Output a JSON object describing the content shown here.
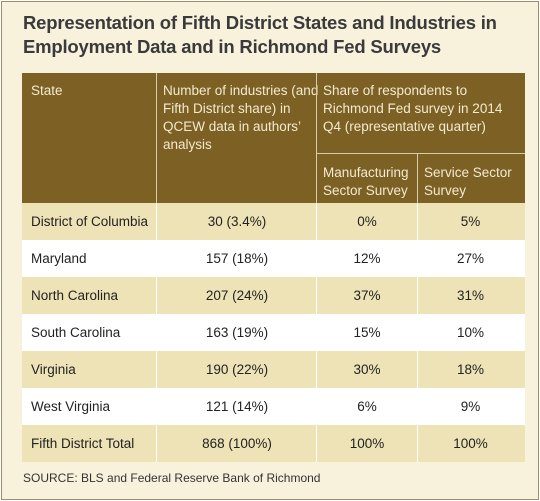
{
  "title": "Representation of Fifth District States and Industries in Employment Data and in Richmond Fed Surveys",
  "headers": {
    "state": "State",
    "industries": "Number of industries (and Fifth District share) in QCEW data in authors’ analysis",
    "share": "Share of respondents to Richmond Fed survey in 2014 Q4 (representative quarter)",
    "manufacturing": "Manufacturing Sector Survey",
    "service": "Service Sector Survey"
  },
  "rows": [
    {
      "state": "District of Columbia",
      "industries": "30 (3.4%)",
      "manufacturing": "0%",
      "service": "5%"
    },
    {
      "state": "Maryland",
      "industries": "157 (18%)",
      "manufacturing": "12%",
      "service": "27%"
    },
    {
      "state": "North Carolina",
      "industries": "207 (24%)",
      "manufacturing": "37%",
      "service": "31%"
    },
    {
      "state": "South Carolina",
      "industries": "163 (19%)",
      "manufacturing": "15%",
      "service": "10%"
    },
    {
      "state": "Virginia",
      "industries": "190 (22%)",
      "manufacturing": "30%",
      "service": "18%"
    },
    {
      "state": "West Virginia",
      "industries": "121 (14%)",
      "manufacturing": "6%",
      "service": "9%"
    },
    {
      "state": "Fifth District Total",
      "industries": "868 (100%)",
      "manufacturing": "100%",
      "service": "100%"
    }
  ],
  "source": "SOURCE: BLS and Federal Reserve Bank of Richmond",
  "colors": {
    "header_bg": "#7c6024",
    "header_text": "#f3ead0",
    "shaded_row": "#ede3b6",
    "frame_bg": "#f8f2dc"
  }
}
